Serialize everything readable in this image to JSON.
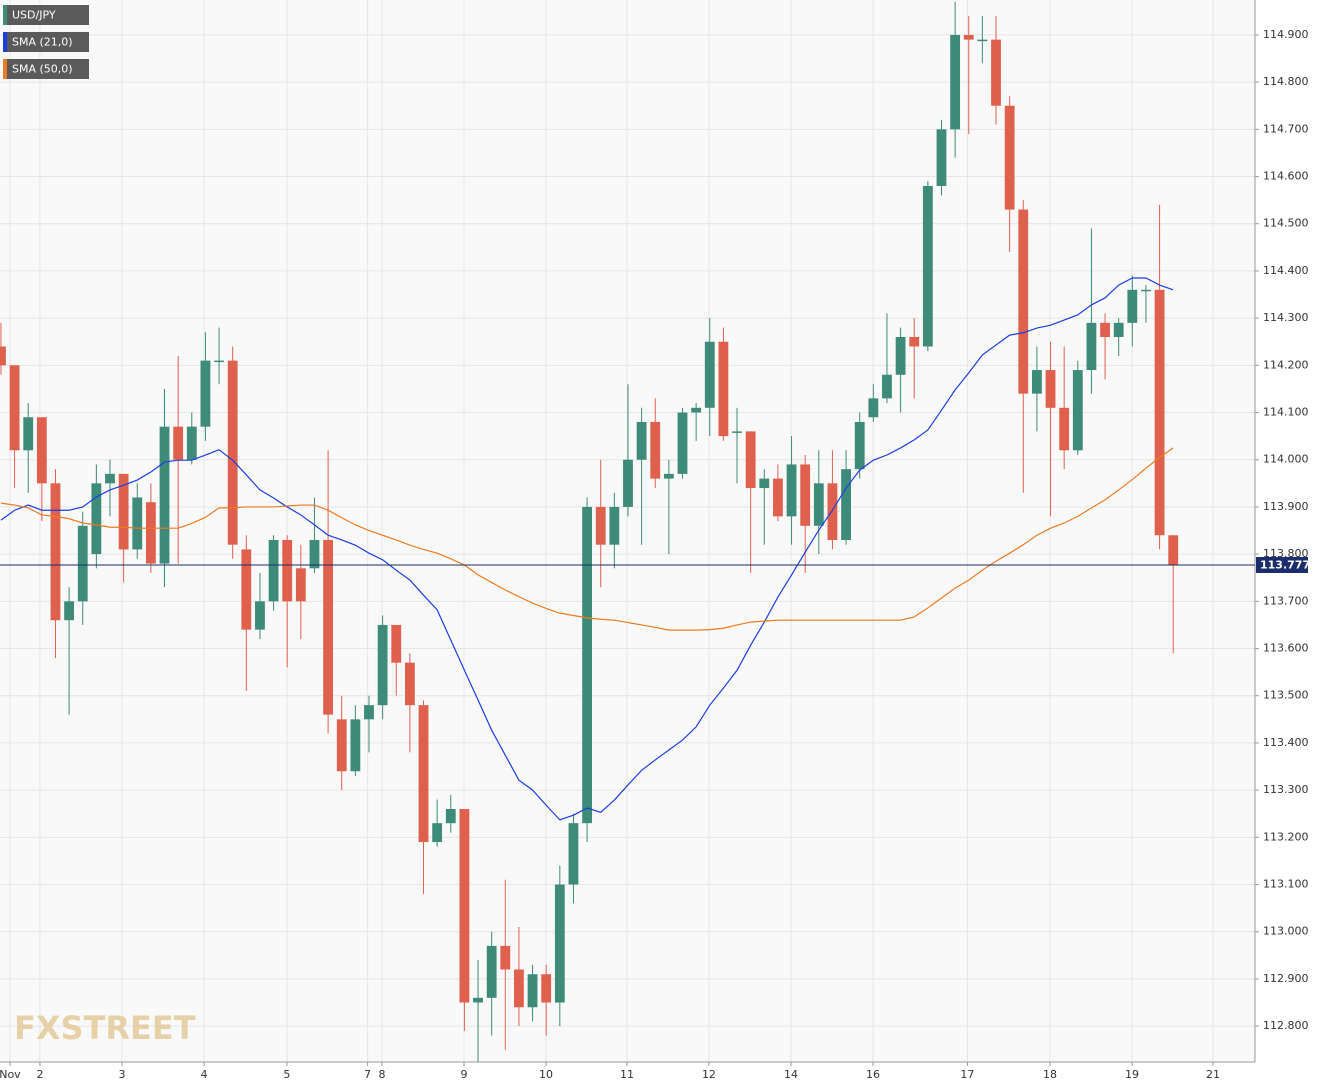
{
  "chart_data": {
    "type": "candlestick",
    "watermark": "FXSTREET",
    "x": [
      0,
      1,
      2,
      3,
      4,
      5,
      6,
      7,
      8,
      9,
      10,
      11,
      12,
      13,
      14,
      15,
      16,
      17,
      18,
      19,
      20,
      21,
      22,
      23,
      24,
      25,
      26,
      27,
      28,
      29,
      30,
      31,
      32,
      33,
      34,
      35,
      36,
      37,
      38,
      39,
      40,
      41,
      42,
      43,
      44,
      45,
      46,
      47,
      48,
      49,
      50,
      51,
      52,
      53,
      54,
      55,
      56,
      57,
      58,
      59,
      60,
      61,
      62,
      63,
      64,
      65,
      66,
      67,
      68,
      69,
      70,
      71,
      72,
      73,
      74,
      75,
      76,
      77,
      78,
      79,
      80,
      81,
      82,
      83,
      84,
      85,
      86
    ],
    "series": [
      {
        "name": "USD/JPY",
        "color": "#3d8b78",
        "color_down": "#e0604e",
        "open": [
          114.24,
          114.2,
          114.02,
          114.09,
          113.95,
          113.66,
          113.7,
          113.8,
          113.95,
          113.97,
          113.81,
          113.91,
          113.78,
          114.07,
          114.0,
          114.07,
          114.21,
          114.21,
          113.81,
          113.64,
          113.7,
          113.83,
          113.77,
          113.77,
          113.83,
          113.45,
          113.34,
          113.45,
          113.48,
          113.65,
          113.57,
          113.48,
          113.19,
          113.23,
          113.26,
          112.85,
          112.86,
          112.97,
          112.92,
          112.84,
          112.91,
          112.85,
          113.1,
          113.23,
          113.9,
          113.82,
          113.9,
          114.0,
          114.08,
          113.96,
          113.97,
          114.1,
          114.11,
          114.25,
          114.06,
          114.06,
          113.94,
          113.96,
          113.88,
          113.99,
          113.86,
          113.95,
          113.83,
          113.98,
          114.09,
          114.13,
          114.18,
          114.26,
          114.24,
          114.58,
          114.7,
          114.9,
          114.89,
          114.89,
          114.75,
          114.53,
          114.14,
          114.19,
          114.11,
          114.02,
          114.19,
          114.29,
          114.26,
          114.29,
          114.36,
          114.36,
          113.84
        ],
        "high": [
          114.29,
          114.2,
          114.12,
          114.09,
          113.98,
          113.73,
          113.89,
          113.99,
          114.0,
          113.97,
          113.95,
          113.95,
          114.15,
          114.22,
          114.1,
          114.27,
          114.28,
          114.24,
          113.84,
          113.76,
          113.84,
          113.84,
          113.82,
          113.92,
          114.02,
          113.5,
          113.48,
          113.5,
          113.67,
          113.65,
          113.59,
          113.49,
          113.28,
          113.29,
          113.26,
          112.94,
          113.0,
          113.11,
          113.01,
          112.93,
          112.93,
          113.14,
          113.25,
          113.92,
          114.0,
          113.93,
          114.16,
          114.11,
          114.13,
          114.0,
          114.11,
          114.12,
          114.3,
          114.28,
          114.11,
          114.06,
          113.98,
          113.99,
          114.05,
          114.01,
          114.02,
          114.02,
          114.02,
          114.1,
          114.16,
          114.31,
          114.28,
          114.3,
          114.59,
          114.72,
          114.97,
          114.94,
          114.94,
          114.94,
          114.77,
          114.55,
          114.24,
          114.25,
          114.24,
          114.21,
          114.49,
          114.31,
          114.3,
          114.39,
          114.37,
          114.54,
          113.84
        ],
        "low": [
          114.18,
          113.94,
          113.93,
          113.87,
          113.58,
          113.46,
          113.65,
          113.77,
          113.88,
          113.74,
          113.79,
          113.76,
          113.73,
          113.78,
          113.99,
          114.04,
          114.16,
          113.79,
          113.51,
          113.62,
          113.68,
          113.56,
          113.62,
          113.76,
          113.42,
          113.3,
          113.33,
          113.38,
          113.45,
          113.5,
          113.38,
          113.08,
          113.18,
          113.21,
          112.79,
          112.72,
          112.78,
          112.75,
          112.8,
          112.81,
          112.78,
          112.8,
          113.06,
          113.19,
          113.73,
          113.77,
          113.88,
          113.82,
          113.94,
          113.8,
          113.96,
          114.04,
          114.05,
          114.04,
          113.95,
          113.76,
          113.82,
          113.87,
          113.82,
          113.76,
          113.8,
          113.81,
          113.82,
          113.96,
          114.08,
          114.12,
          114.1,
          114.13,
          114.23,
          114.56,
          114.64,
          114.69,
          114.84,
          114.71,
          114.44,
          113.93,
          114.06,
          113.88,
          113.98,
          114.01,
          114.14,
          114.17,
          114.22,
          114.24,
          114.29,
          113.81,
          113.59
        ],
        "close": [
          114.2,
          114.02,
          114.09,
          113.95,
          113.66,
          113.7,
          113.86,
          113.95,
          113.97,
          113.81,
          113.92,
          113.78,
          114.07,
          114.0,
          114.07,
          114.21,
          114.21,
          113.82,
          113.64,
          113.7,
          113.83,
          113.7,
          113.7,
          113.83,
          113.46,
          113.34,
          113.45,
          113.48,
          113.65,
          113.57,
          113.48,
          113.19,
          113.23,
          113.26,
          112.85,
          112.86,
          112.97,
          112.92,
          112.84,
          112.91,
          112.85,
          113.1,
          113.23,
          113.9,
          113.82,
          113.9,
          114.0,
          114.08,
          113.96,
          113.97,
          114.1,
          114.11,
          114.25,
          114.05,
          114.06,
          113.94,
          113.96,
          113.88,
          113.99,
          113.86,
          113.95,
          113.83,
          113.98,
          114.08,
          114.13,
          114.18,
          114.26,
          114.24,
          114.58,
          114.7,
          114.9,
          114.89,
          114.89,
          114.75,
          114.53,
          114.14,
          114.19,
          114.11,
          114.02,
          114.19,
          114.29,
          114.26,
          114.29,
          114.36,
          114.36,
          113.84,
          113.777
        ]
      },
      {
        "name": "SMA (21,0)",
        "color": "#1c3ee0",
        "values": [
          113.872,
          113.893,
          113.904,
          113.893,
          113.893,
          113.893,
          113.9,
          113.921,
          113.936,
          113.946,
          113.957,
          113.974,
          113.995,
          113.999,
          113.999,
          114.01,
          114.021,
          113.999,
          113.968,
          113.936,
          113.919,
          113.9,
          113.883,
          113.862,
          113.84,
          113.83,
          113.819,
          113.802,
          113.788,
          113.766,
          113.745,
          113.713,
          113.682,
          113.618,
          113.554,
          113.491,
          113.427,
          113.374,
          113.321,
          113.3,
          113.268,
          113.237,
          113.247,
          113.262,
          113.253,
          113.279,
          113.311,
          113.342,
          113.364,
          113.385,
          113.406,
          113.434,
          113.48,
          113.516,
          113.554,
          113.607,
          113.656,
          113.709,
          113.756,
          113.804,
          113.851,
          113.893,
          113.94,
          113.978,
          113.999,
          114.01,
          114.025,
          114.042,
          114.063,
          114.105,
          114.148,
          114.184,
          114.222,
          114.243,
          114.264,
          114.269,
          114.279,
          114.285,
          114.296,
          114.307,
          114.328,
          114.343,
          114.37,
          114.385,
          114.385,
          114.37,
          114.36
        ]
      },
      {
        "name": "SMA (50,0)",
        "color": "#ee7a22",
        "values": [
          113.908,
          113.904,
          113.898,
          113.883,
          113.88,
          113.875,
          113.866,
          113.862,
          113.857,
          113.857,
          113.855,
          113.855,
          113.855,
          113.855,
          113.865,
          113.878,
          113.898,
          113.898,
          113.9,
          113.9,
          113.9,
          113.902,
          113.904,
          113.904,
          113.893,
          113.877,
          113.862,
          113.85,
          113.84,
          113.83,
          113.819,
          113.81,
          113.802,
          113.79,
          113.777,
          113.756,
          113.74,
          113.724,
          113.71,
          113.696,
          113.685,
          113.675,
          113.67,
          113.665,
          113.662,
          113.66,
          113.655,
          113.65,
          113.645,
          113.639,
          113.639,
          113.639,
          113.64,
          113.643,
          113.65,
          113.656,
          113.658,
          113.66,
          113.66,
          113.66,
          113.66,
          113.66,
          113.66,
          113.66,
          113.66,
          113.66,
          113.66,
          113.667,
          113.686,
          113.707,
          113.728,
          113.745,
          113.766,
          113.785,
          113.802,
          113.82,
          113.84,
          113.855,
          113.866,
          113.88,
          113.898,
          113.915,
          113.936,
          113.958,
          113.982,
          114.005,
          114.025
        ]
      }
    ],
    "last_price": 113.777,
    "last_price_color": "#1b2d6b",
    "xlim": [
      -0.07,
      92.0
    ],
    "xticks": [
      {
        "value": 0.66,
        "label": "Nov"
      },
      {
        "value": 2.86,
        "label": "2"
      },
      {
        "value": 8.88,
        "label": "3"
      },
      {
        "value": 14.9,
        "label": "4"
      },
      {
        "value": 20.98,
        "label": "5"
      },
      {
        "value": 26.9,
        "label": "7"
      },
      {
        "value": 27.95,
        "label": "8"
      },
      {
        "value": 33.97,
        "label": "9"
      },
      {
        "value": 39.99,
        "label": "10"
      },
      {
        "value": 45.93,
        "label": "11"
      },
      {
        "value": 51.94,
        "label": "12"
      },
      {
        "value": 57.96,
        "label": "14"
      },
      {
        "value": 63.98,
        "label": "16"
      },
      {
        "value": 70.9,
        "label": "17"
      },
      {
        "value": 76.96,
        "label": "18"
      },
      {
        "value": 82.98,
        "label": "19"
      },
      {
        "value": 88.92,
        "label": "21"
      }
    ],
    "ylim": [
      112.724,
      114.974
    ],
    "yticks": [
      {
        "value": 112.8,
        "label": "112.800"
      },
      {
        "value": 112.9,
        "label": "112.900"
      },
      {
        "value": 113.0,
        "label": "113.000"
      },
      {
        "value": 113.1,
        "label": "113.100"
      },
      {
        "value": 113.2,
        "label": "113.200"
      },
      {
        "value": 113.3,
        "label": "113.300"
      },
      {
        "value": 113.4,
        "label": "113.400"
      },
      {
        "value": 113.5,
        "label": "113.500"
      },
      {
        "value": 113.6,
        "label": "113.600"
      },
      {
        "value": 113.7,
        "label": "113.700"
      },
      {
        "value": 113.8,
        "label": "113.800"
      },
      {
        "value": 113.9,
        "label": "113.900"
      },
      {
        "value": 114.0,
        "label": "114.000"
      },
      {
        "value": 114.1,
        "label": "114.100"
      },
      {
        "value": 114.2,
        "label": "114.200"
      },
      {
        "value": 114.3,
        "label": "114.300"
      },
      {
        "value": 114.4,
        "label": "114.400"
      },
      {
        "value": 114.5,
        "label": "114.500"
      },
      {
        "value": 114.6,
        "label": "114.600"
      },
      {
        "value": 114.7,
        "label": "114.700"
      },
      {
        "value": 114.8,
        "label": "114.800"
      },
      {
        "value": 114.9,
        "label": "114.900"
      }
    ],
    "grid": true
  }
}
